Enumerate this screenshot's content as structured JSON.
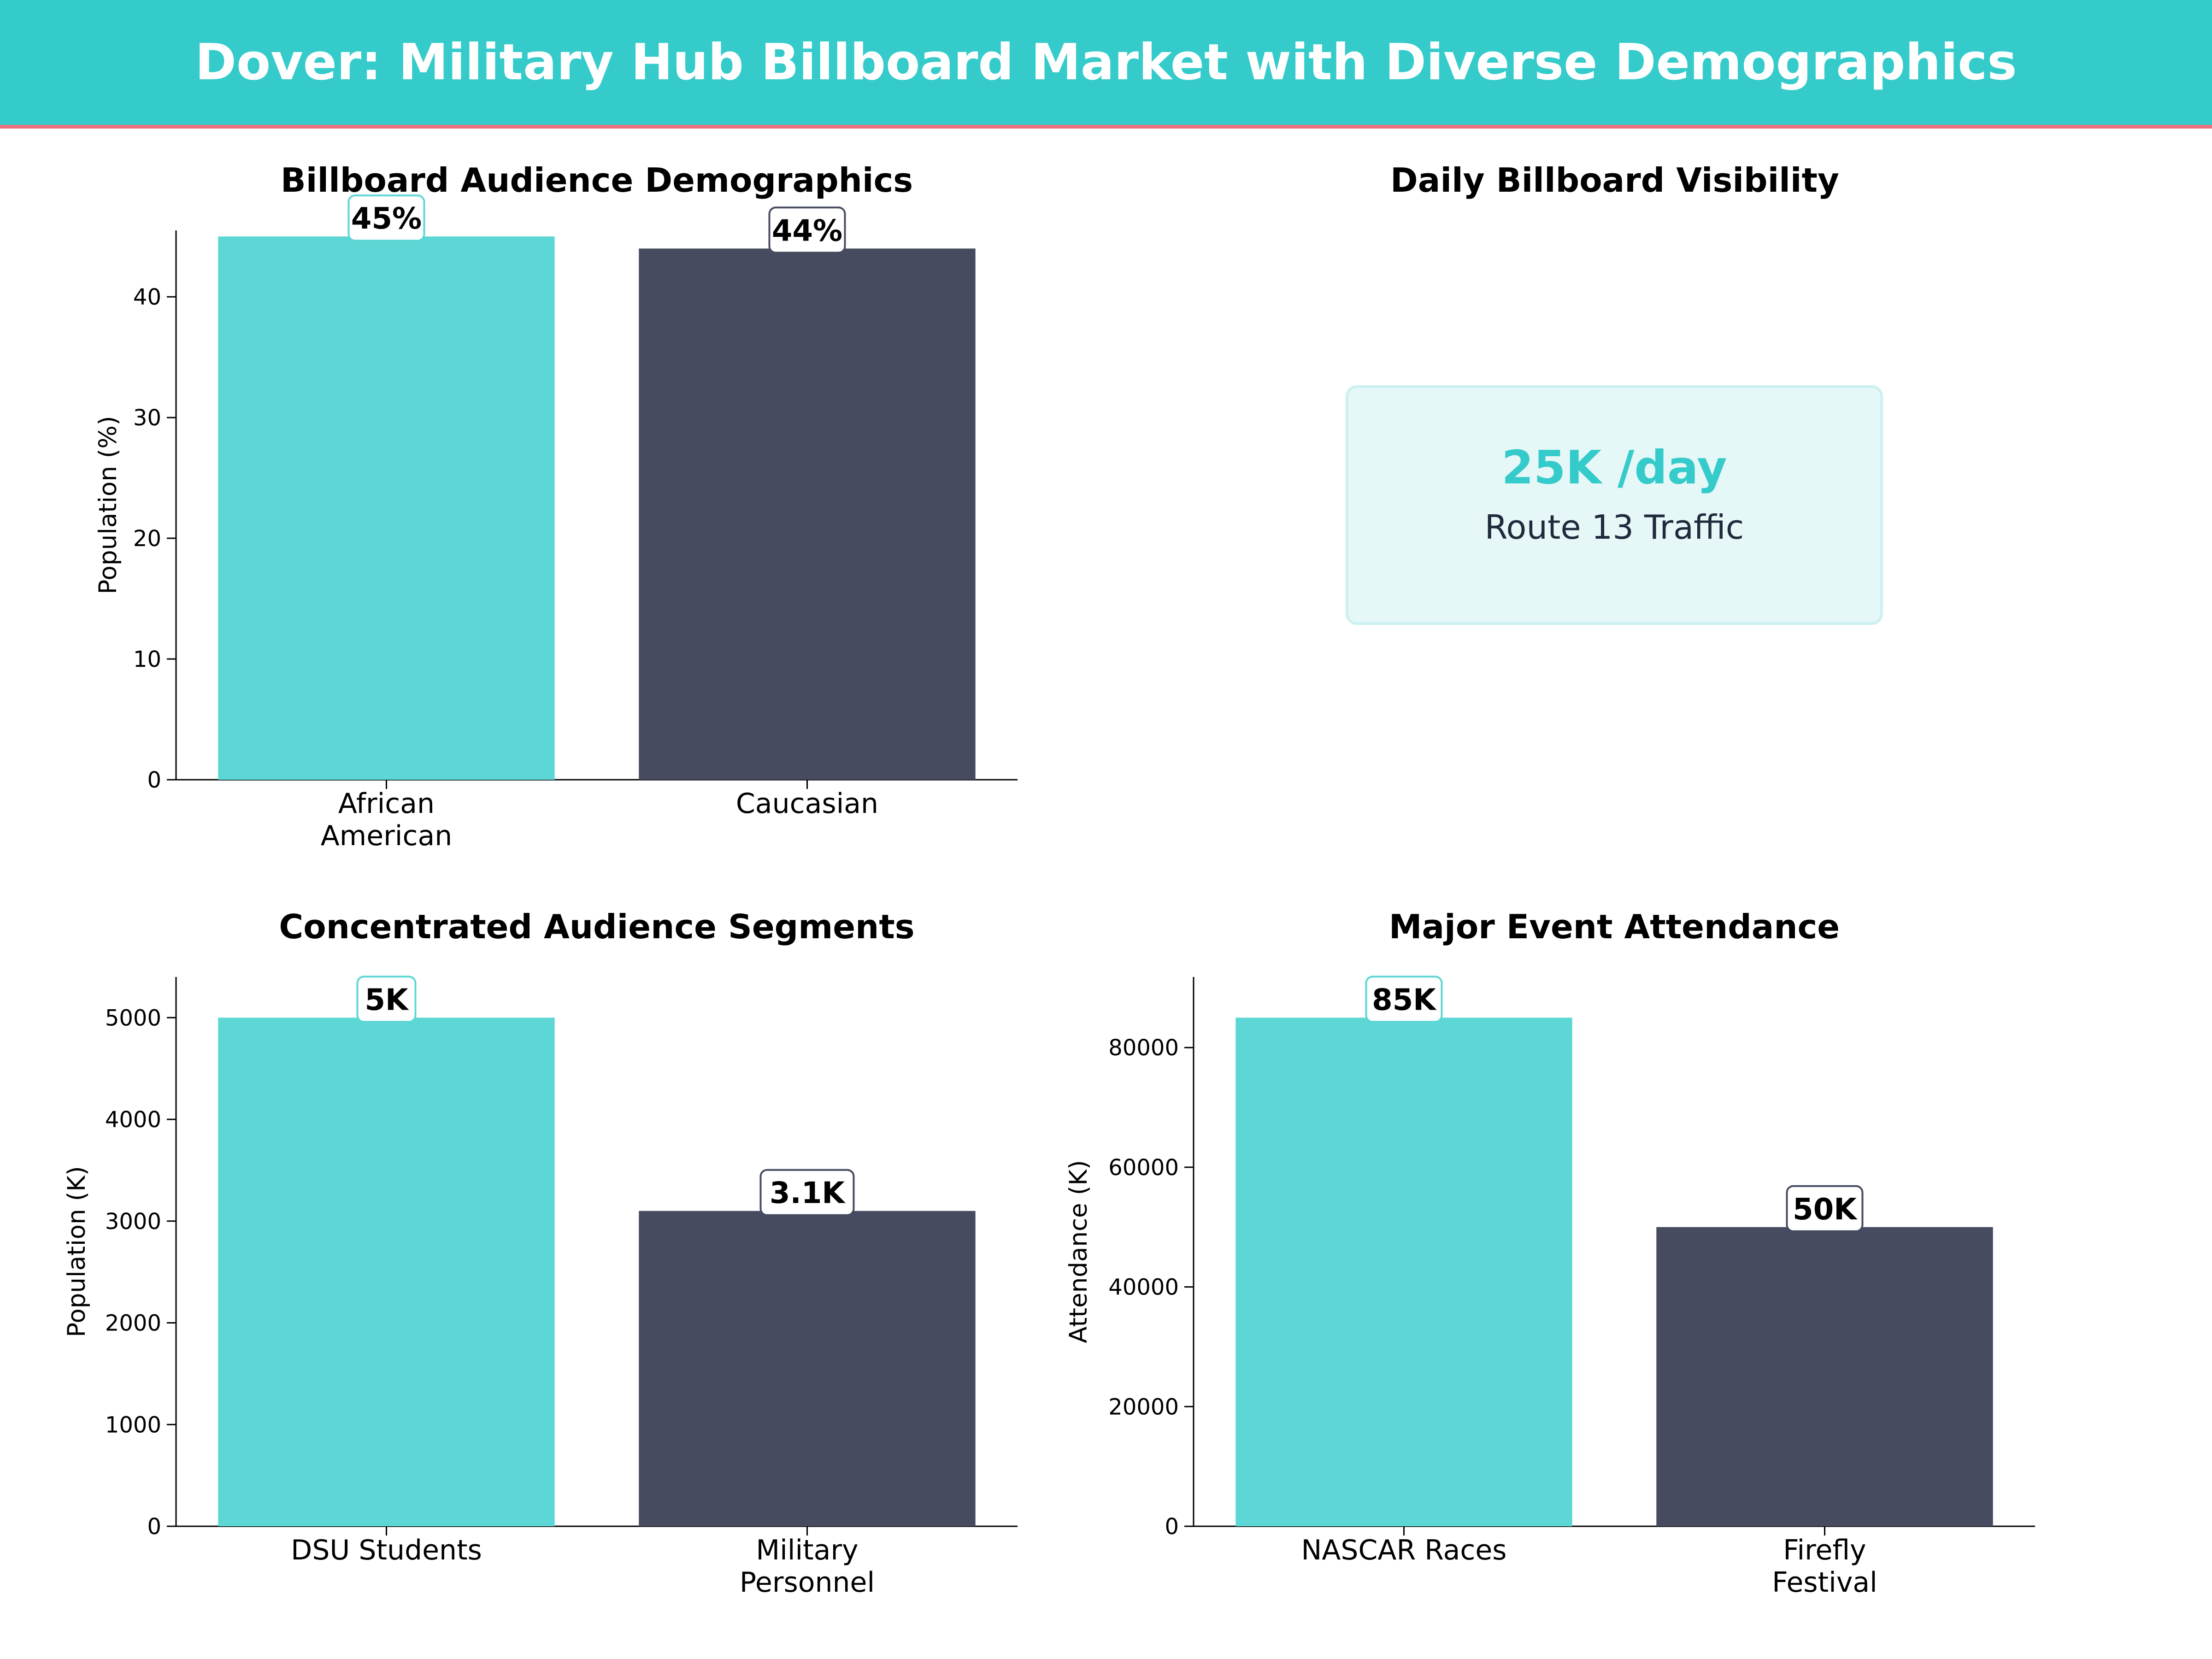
{
  "header": {
    "title": "Dover: Military Hub Billboard Market with Diverse Demographics"
  },
  "colors": {
    "banner": "#36cbcb",
    "banner_border": "#ee6f80",
    "teal_bar": "#5dd7d5",
    "navy_bar": "#464b60",
    "teal_box_edge": "#5dd7d5",
    "navy_box_edge": "#464b60"
  },
  "visibility": {
    "title": "Daily Billboard Visibility",
    "value": "25K /day",
    "subtitle": "Route 13 Traffic"
  },
  "chart_data": [
    {
      "id": "demographics",
      "type": "bar",
      "title": "Billboard Audience Demographics",
      "ylabel": "Population (%)",
      "categories": [
        "African\nAmerican",
        "Caucasian"
      ],
      "values": [
        45,
        44
      ],
      "data_labels": [
        "45%",
        "44%"
      ],
      "ylim": [
        0,
        45.5
      ],
      "yticks": [
        0,
        10,
        20,
        30,
        40
      ],
      "bar_colors": [
        "#5dd7d5",
        "#464b60"
      ],
      "grid": false
    },
    {
      "id": "segments",
      "type": "bar",
      "title": "Concentrated Audience Segments",
      "ylabel": "Population (K)",
      "categories": [
        "DSU Students",
        "Military\nPersonnel"
      ],
      "values": [
        5000,
        3100
      ],
      "data_labels": [
        "5K",
        "3.1K"
      ],
      "ylim": [
        0,
        5400
      ],
      "yticks": [
        0,
        1000,
        2000,
        3000,
        4000,
        5000
      ],
      "bar_colors": [
        "#5dd7d5",
        "#464b60"
      ],
      "grid": false
    },
    {
      "id": "events",
      "type": "bar",
      "title": "Major Event Attendance",
      "ylabel": "Attendance (K)",
      "categories": [
        "NASCAR Races",
        "Firefly\nFestival"
      ],
      "values": [
        85000,
        50000
      ],
      "data_labels": [
        "85K",
        "50K"
      ],
      "ylim": [
        0,
        91800
      ],
      "yticks": [
        0,
        20000,
        40000,
        60000,
        80000
      ],
      "bar_colors": [
        "#5dd7d5",
        "#464b60"
      ],
      "grid": false
    }
  ]
}
